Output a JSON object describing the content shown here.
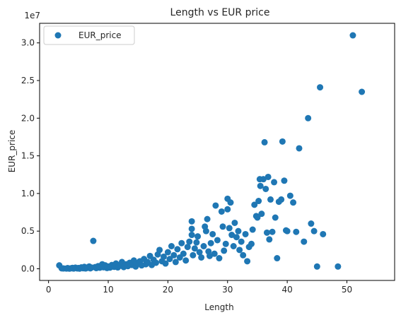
{
  "chart_data": {
    "type": "scatter",
    "title": "Length vs EUR price",
    "xlabel": "Length",
    "ylabel": "EUR_price",
    "y_offset_text": "1e7",
    "xlim": [
      -1.5,
      58
    ],
    "ylim": [
      -1550000,
      32600000
    ],
    "x_ticks": [
      0,
      10,
      20,
      30,
      40,
      50
    ],
    "y_ticks": [
      0,
      5000000,
      10000000,
      15000000,
      20000000,
      25000000,
      30000000
    ],
    "y_tick_labels": [
      "0.0",
      "0.5",
      "1.0",
      "1.5",
      "2.0",
      "2.5",
      "3.0"
    ],
    "legend": {
      "placement": "top-left",
      "entries": [
        "EUR_price"
      ]
    },
    "grid": false,
    "series": [
      {
        "name": "EUR_price",
        "color": "#1f77b4",
        "points": [
          [
            1.8,
            450000
          ],
          [
            2.2,
            60000
          ],
          [
            2.5,
            40000
          ],
          [
            3.0,
            30000
          ],
          [
            3.2,
            90000
          ],
          [
            3.5,
            20000
          ],
          [
            3.8,
            70000
          ],
          [
            4.0,
            110000
          ],
          [
            4.2,
            30000
          ],
          [
            4.5,
            150000
          ],
          [
            4.8,
            50000
          ],
          [
            5.0,
            100000
          ],
          [
            5.2,
            20000
          ],
          [
            5.5,
            180000
          ],
          [
            5.8,
            70000
          ],
          [
            6.0,
            250000
          ],
          [
            6.2,
            40000
          ],
          [
            6.5,
            120000
          ],
          [
            6.8,
            300000
          ],
          [
            7.0,
            60000
          ],
          [
            7.2,
            160000
          ],
          [
            7.5,
            3700000
          ],
          [
            7.8,
            220000
          ],
          [
            8.0,
            90000
          ],
          [
            8.3,
            350000
          ],
          [
            8.6,
            140000
          ],
          [
            9.0,
            600000
          ],
          [
            9.2,
            200000
          ],
          [
            9.5,
            450000
          ],
          [
            9.8,
            100000
          ],
          [
            10.0,
            300000
          ],
          [
            10.3,
            150000
          ],
          [
            10.6,
            500000
          ],
          [
            11.0,
            250000
          ],
          [
            11.3,
            700000
          ],
          [
            11.6,
            180000
          ],
          [
            12.0,
            400000
          ],
          [
            12.3,
            900000
          ],
          [
            12.6,
            220000
          ],
          [
            13.0,
            600000
          ],
          [
            13.3,
            350000
          ],
          [
            13.6,
            800000
          ],
          [
            14.0,
            500000
          ],
          [
            14.3,
            1100000
          ],
          [
            14.6,
            300000
          ],
          [
            15.0,
            700000
          ],
          [
            15.3,
            1000000
          ],
          [
            15.6,
            450000
          ],
          [
            16.0,
            1300000
          ],
          [
            16.3,
            600000
          ],
          [
            16.6,
            900000
          ],
          [
            17.0,
            1700000
          ],
          [
            17.3,
            500000
          ],
          [
            17.6,
            1200000
          ],
          [
            18.0,
            800000
          ],
          [
            18.3,
            1900000
          ],
          [
            18.6,
            2500000
          ],
          [
            19.0,
            1000000
          ],
          [
            19.3,
            1600000
          ],
          [
            19.6,
            700000
          ],
          [
            20.0,
            2200000
          ],
          [
            20.3,
            1300000
          ],
          [
            20.6,
            3000000
          ],
          [
            21.0,
            1800000
          ],
          [
            21.3,
            900000
          ],
          [
            21.6,
            2600000
          ],
          [
            22.0,
            1500000
          ],
          [
            22.3,
            3400000
          ],
          [
            22.6,
            2000000
          ],
          [
            23.0,
            1100000
          ],
          [
            23.3,
            2900000
          ],
          [
            23.6,
            3600000
          ],
          [
            24.0,
            6300000
          ],
          [
            24.0,
            5300000
          ],
          [
            24.0,
            4500000
          ],
          [
            24.2,
            1800000
          ],
          [
            24.5,
            2700000
          ],
          [
            24.8,
            3500000
          ],
          [
            25.0,
            4300000
          ],
          [
            25.3,
            2200000
          ],
          [
            25.6,
            1500000
          ],
          [
            26.0,
            3000000
          ],
          [
            26.2,
            5600000
          ],
          [
            26.4,
            5000000
          ],
          [
            26.6,
            6600000
          ],
          [
            26.8,
            2300000
          ],
          [
            27.0,
            1700000
          ],
          [
            27.2,
            3400000
          ],
          [
            27.5,
            4600000
          ],
          [
            27.8,
            2000000
          ],
          [
            28.0,
            8400000
          ],
          [
            28.3,
            3800000
          ],
          [
            28.6,
            1400000
          ],
          [
            29.0,
            7600000
          ],
          [
            29.2,
            5600000
          ],
          [
            29.4,
            2400000
          ],
          [
            29.7,
            3300000
          ],
          [
            30.0,
            9300000
          ],
          [
            30.0,
            7900000
          ],
          [
            30.3,
            5400000
          ],
          [
            30.5,
            8800000
          ],
          [
            30.7,
            4500000
          ],
          [
            31.0,
            3000000
          ],
          [
            31.2,
            6100000
          ],
          [
            31.5,
            4200000
          ],
          [
            31.8,
            5000000
          ],
          [
            32.0,
            2500000
          ],
          [
            32.3,
            3600000
          ],
          [
            32.6,
            1800000
          ],
          [
            33.0,
            4600000
          ],
          [
            33.3,
            1000000
          ],
          [
            33.6,
            2900000
          ],
          [
            34.0,
            3300000
          ],
          [
            34.2,
            5200000
          ],
          [
            34.5,
            8500000
          ],
          [
            34.8,
            7000000
          ],
          [
            35.0,
            6800000
          ],
          [
            35.2,
            9000000
          ],
          [
            35.4,
            11900000
          ],
          [
            35.5,
            11000000
          ],
          [
            35.7,
            7300000
          ],
          [
            36.0,
            11900000
          ],
          [
            36.2,
            16800000
          ],
          [
            36.4,
            10600000
          ],
          [
            36.6,
            4800000
          ],
          [
            36.8,
            12200000
          ],
          [
            37.0,
            3900000
          ],
          [
            37.2,
            9200000
          ],
          [
            37.5,
            4900000
          ],
          [
            37.8,
            11500000
          ],
          [
            38.0,
            6800000
          ],
          [
            38.3,
            1400000
          ],
          [
            38.6,
            8900000
          ],
          [
            39.0,
            9200000
          ],
          [
            39.2,
            16900000
          ],
          [
            39.5,
            11700000
          ],
          [
            39.8,
            5100000
          ],
          [
            40.0,
            5000000
          ],
          [
            40.5,
            9700000
          ],
          [
            41.0,
            8800000
          ],
          [
            41.5,
            4900000
          ],
          [
            42.0,
            16000000
          ],
          [
            42.8,
            3600000
          ],
          [
            43.5,
            20000000
          ],
          [
            44.0,
            6000000
          ],
          [
            44.5,
            5000000
          ],
          [
            45.0,
            300000
          ],
          [
            45.5,
            24100000
          ],
          [
            46.0,
            4600000
          ],
          [
            48.5,
            300000
          ],
          [
            51.0,
            31000000
          ],
          [
            52.5,
            23500000
          ]
        ]
      }
    ]
  }
}
